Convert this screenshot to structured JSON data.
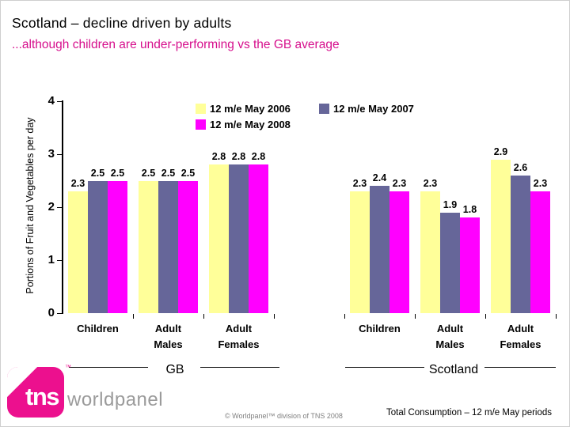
{
  "slide": {
    "title": "Scotland – decline driven by adults",
    "subtitle": "...although children are under-performing vs the GB average",
    "subtitle_color": "#d60e8c"
  },
  "chart_data": {
    "type": "bar",
    "title": "",
    "xlabel": "",
    "ylabel": "Portions of Fruit and Vegetables per day",
    "ylim": [
      0,
      4
    ],
    "yticks": [
      0,
      1,
      2,
      3,
      4
    ],
    "grid": false,
    "legend_position": "top-inside",
    "categories": [
      "Children",
      "Adult Males",
      "Adult Females",
      "Children",
      "Adult Males",
      "Adult Females"
    ],
    "series": [
      {
        "name": "12 m/e May 2006",
        "color": "#ffff99",
        "values": [
          2.3,
          2.5,
          2.8,
          2.3,
          2.3,
          2.9
        ]
      },
      {
        "name": "12 m/e May 2007",
        "color": "#666699",
        "values": [
          2.5,
          2.5,
          2.8,
          2.4,
          1.9,
          2.6
        ]
      },
      {
        "name": "12 m/e May 2008",
        "color": "#ff00ff",
        "values": [
          2.5,
          2.5,
          2.8,
          2.3,
          1.8,
          2.3
        ]
      }
    ],
    "group_labels": {
      "left": "GB",
      "right": "Scotland"
    }
  },
  "logo": {
    "brand": "tns",
    "trademark": "™",
    "suffix": "worldpanel"
  },
  "footer": {
    "copyright": "© Worldpanel™ division of TNS 2008",
    "note": "Total Consumption – 12 m/e May periods"
  }
}
